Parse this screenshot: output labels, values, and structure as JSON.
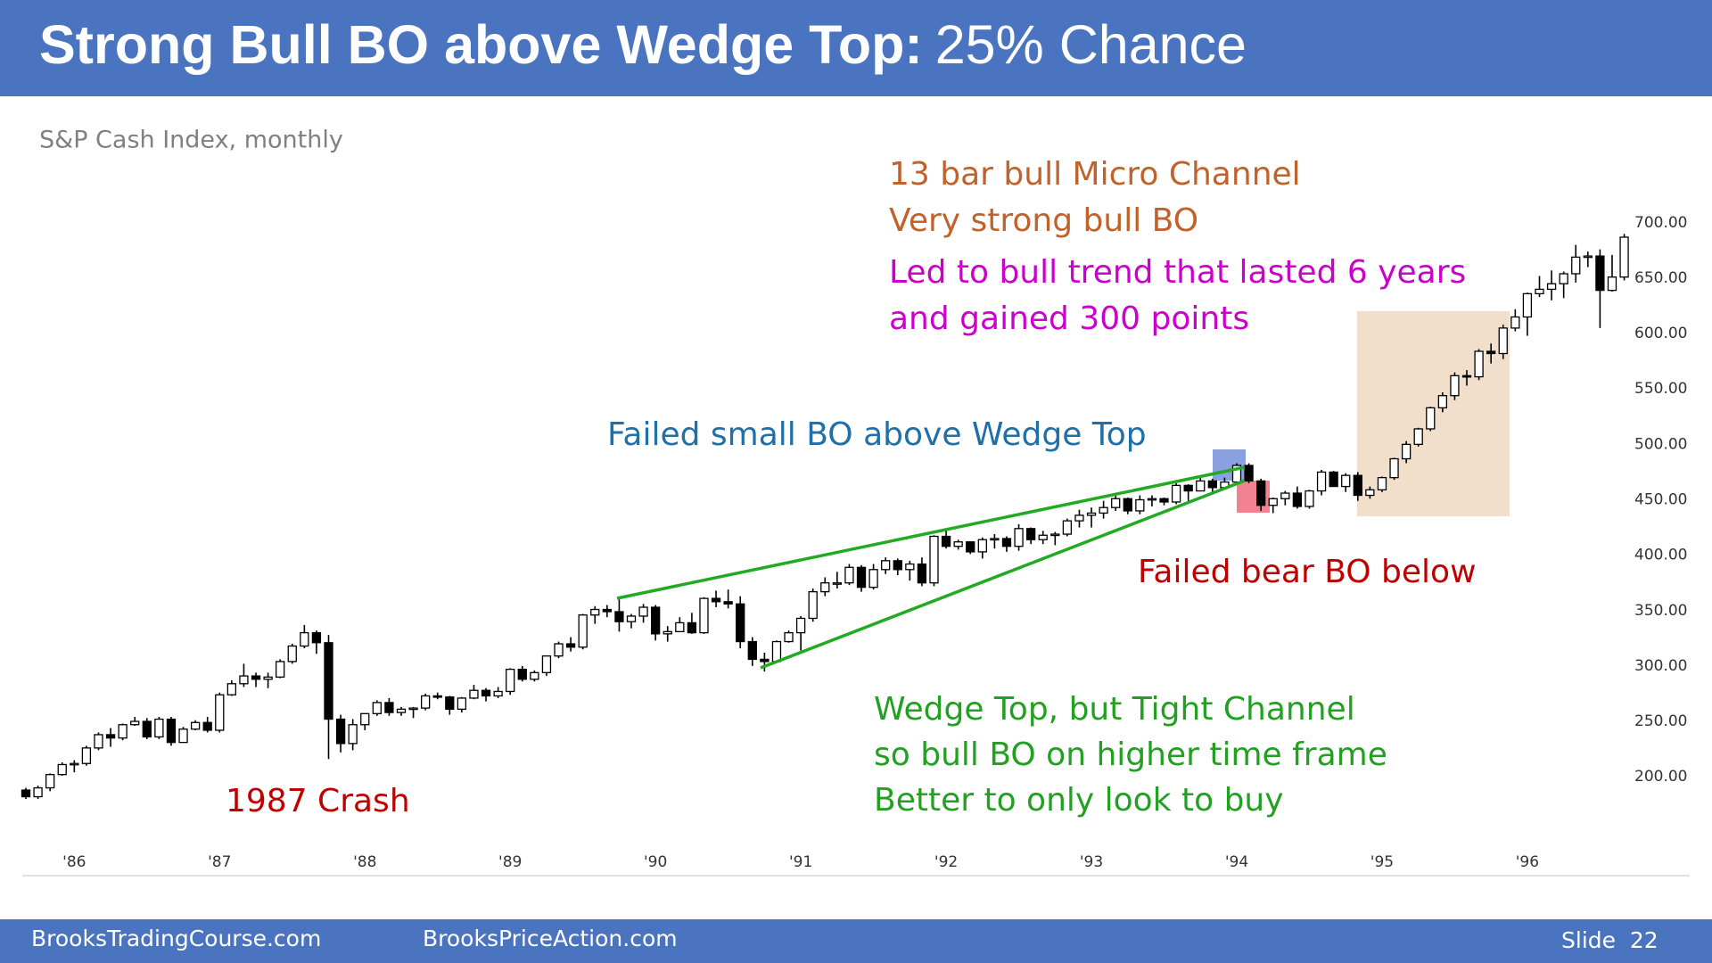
{
  "chart_data": {
    "type": "candlestick",
    "title_bold": "Strong Bull BO above Wedge Top:",
    "title_rest": "25% Chance",
    "subtitle": "S&P Cash Index, monthly",
    "annotations": [
      "13 bar bull Micro Channel",
      "Very strong bull BO",
      "Led to bull trend that lasted 6 years",
      "and gained 300 points",
      "Failed small BO above Wedge Top",
      "Failed bear BO below",
      "Wedge Top, but Tight Channel",
      "so bull BO on higher time frame",
      "Better to only look to buy",
      "1987 Crash"
    ],
    "footer": [
      "BrooksTradingCourse.com",
      "BrooksPriceAction.com",
      "Slide  22"
    ],
    "categories": [
      null,
      null,
      null,
      null,
      "'86",
      null,
      null,
      null,
      null,
      null,
      null,
      null,
      null,
      null,
      null,
      null,
      "'87",
      null,
      null,
      null,
      null,
      null,
      null,
      null,
      null,
      null,
      null,
      null,
      "'88",
      null,
      null,
      null,
      null,
      null,
      null,
      null,
      null,
      null,
      null,
      null,
      "'89",
      null,
      null,
      null,
      null,
      null,
      null,
      null,
      null,
      null,
      null,
      null,
      "'90",
      null,
      null,
      null,
      null,
      null,
      null,
      null,
      null,
      null,
      null,
      null,
      "'91",
      null,
      null,
      null,
      null,
      null,
      null,
      null,
      null,
      null,
      null,
      null,
      "'92",
      null,
      null,
      null,
      null,
      null,
      null,
      null,
      null,
      null,
      null,
      null,
      "'93",
      null,
      null,
      null,
      null,
      null,
      null,
      null,
      null,
      null,
      null,
      null,
      "'94",
      null,
      null,
      null,
      null,
      null,
      null,
      null,
      null,
      null,
      null,
      null,
      "'95",
      null,
      null,
      null,
      null,
      null,
      null,
      null,
      null,
      null,
      null,
      null,
      "'96",
      null,
      null,
      null,
      null,
      null,
      null,
      null,
      null
    ],
    "open": [
      188,
      182,
      190,
      202,
      211,
      212,
      226,
      238,
      235,
      247,
      250,
      236,
      252,
      231,
      243,
      249,
      242,
      274,
      284,
      291,
      288,
      290,
      304,
      318,
      330,
      321,
      252,
      230,
      247,
      257,
      267,
      258,
      261,
      262,
      273,
      272,
      261,
      271,
      278,
      273,
      277,
      297,
      288,
      294,
      309,
      320,
      317,
      346,
      351,
      349,
      340,
      345,
      353,
      329,
      331,
      339,
      330,
      361,
      358,
      356,
      322,
      306,
      304,
      322,
      330,
      343,
      367,
      375,
      375,
      389,
      371,
      387,
      395,
      387,
      392,
      375,
      417,
      408,
      412,
      403,
      414,
      415,
      408,
      424,
      414,
      418,
      419,
      431,
      436,
      438,
      443,
      451,
      440,
      450,
      451,
      448,
      463,
      458,
      467,
      461,
      466,
      481,
      467,
      445,
      451,
      456,
      444,
      458,
      475,
      462,
      472,
      454,
      459,
      470,
      487,
      500,
      514,
      533,
      544,
      562,
      561,
      584,
      582,
      605,
      615,
      636,
      640,
      645,
      654,
      669,
      670,
      639,
      651
    ],
    "high": [
      190,
      192,
      203,
      213,
      215,
      228,
      240,
      244,
      248,
      254,
      253,
      254,
      254,
      245,
      251,
      254,
      276,
      287,
      302,
      294,
      294,
      306,
      320,
      337,
      332,
      328,
      256,
      252,
      257,
      269,
      271,
      263,
      263,
      275,
      276,
      273,
      272,
      283,
      280,
      281,
      298,
      300,
      296,
      309,
      322,
      326,
      347,
      354,
      355,
      360,
      347,
      356,
      355,
      336,
      344,
      348,
      362,
      368,
      369,
      363,
      326,
      312,
      323,
      332,
      345,
      370,
      380,
      385,
      392,
      391,
      392,
      398,
      397,
      395,
      398,
      418,
      422,
      414,
      412,
      416,
      419,
      417,
      428,
      425,
      422,
      421,
      433,
      441,
      443,
      449,
      456,
      452,
      454,
      454,
      452,
      465,
      464,
      470,
      469,
      470,
      483,
      483,
      469,
      452,
      458,
      462,
      459,
      477,
      476,
      474,
      475,
      462,
      471,
      488,
      503,
      515,
      534,
      547,
      565,
      567,
      586,
      591,
      608,
      622,
      637,
      652,
      657,
      656,
      680,
      674,
      676,
      671,
      690
    ],
    "low": [
      180,
      180,
      187,
      201,
      204,
      210,
      224,
      227,
      233,
      246,
      234,
      234,
      228,
      231,
      242,
      240,
      240,
      273,
      281,
      281,
      280,
      289,
      302,
      316,
      311,
      216,
      222,
      224,
      242,
      255,
      255,
      255,
      253,
      260,
      270,
      256,
      258,
      270,
      268,
      271,
      274,
      286,
      286,
      291,
      307,
      313,
      315,
      338,
      344,
      331,
      334,
      339,
      323,
      322,
      331,
      329,
      329,
      353,
      352,
      316,
      300,
      295,
      303,
      321,
      314,
      340,
      363,
      370,
      373,
      367,
      369,
      383,
      382,
      377,
      372,
      372,
      406,
      405,
      401,
      397,
      406,
      403,
      404,
      410,
      410,
      409,
      417,
      425,
      425,
      433,
      440,
      437,
      437,
      444,
      445,
      446,
      449,
      458,
      457,
      460,
      464,
      465,
      440,
      438,
      445,
      442,
      442,
      454,
      462,
      457,
      449,
      451,
      457,
      468,
      483,
      498,
      512,
      529,
      540,
      553,
      558,
      573,
      577,
      602,
      598,
      633,
      630,
      632,
      646,
      660,
      605,
      638,
      648
    ],
    "close": [
      182,
      190,
      202,
      211,
      212,
      226,
      238,
      235,
      247,
      250,
      236,
      252,
      231,
      243,
      249,
      242,
      274,
      284,
      291,
      288,
      290,
      304,
      318,
      330,
      321,
      252,
      230,
      247,
      257,
      267,
      258,
      261,
      262,
      273,
      272,
      261,
      271,
      278,
      273,
      277,
      297,
      288,
      294,
      309,
      320,
      317,
      346,
      351,
      349,
      340,
      345,
      353,
      329,
      331,
      339,
      330,
      361,
      358,
      356,
      322,
      306,
      304,
      322,
      330,
      343,
      367,
      375,
      375,
      389,
      371,
      387,
      395,
      387,
      392,
      375,
      417,
      408,
      412,
      403,
      414,
      415,
      408,
      424,
      414,
      418,
      419,
      431,
      436,
      438,
      443,
      451,
      440,
      450,
      451,
      448,
      463,
      458,
      467,
      461,
      466,
      481,
      467,
      445,
      451,
      456,
      444,
      458,
      475,
      462,
      472,
      454,
      459,
      470,
      487,
      500,
      514,
      533,
      544,
      562,
      561,
      584,
      582,
      605,
      615,
      636,
      640,
      645,
      654,
      669,
      670,
      639,
      651,
      687
    ],
    "ylim": [
      180,
      720
    ],
    "yticks": [
      {
        "value": 200,
        "label": "200.00"
      },
      {
        "value": 250,
        "label": "250.00"
      },
      {
        "value": 300,
        "label": "300.00"
      },
      {
        "value": 350,
        "label": "350.00"
      },
      {
        "value": 400,
        "label": "400.00"
      },
      {
        "value": 450,
        "label": "450.00"
      },
      {
        "value": 500,
        "label": "500.00"
      },
      {
        "value": 550,
        "label": "550.00"
      },
      {
        "value": 600,
        "label": "600.00"
      },
      {
        "value": 650,
        "label": "650.00"
      },
      {
        "value": 700,
        "label": "700.00"
      }
    ],
    "up_color": "#ffffff",
    "down_color": "#000000"
  }
}
